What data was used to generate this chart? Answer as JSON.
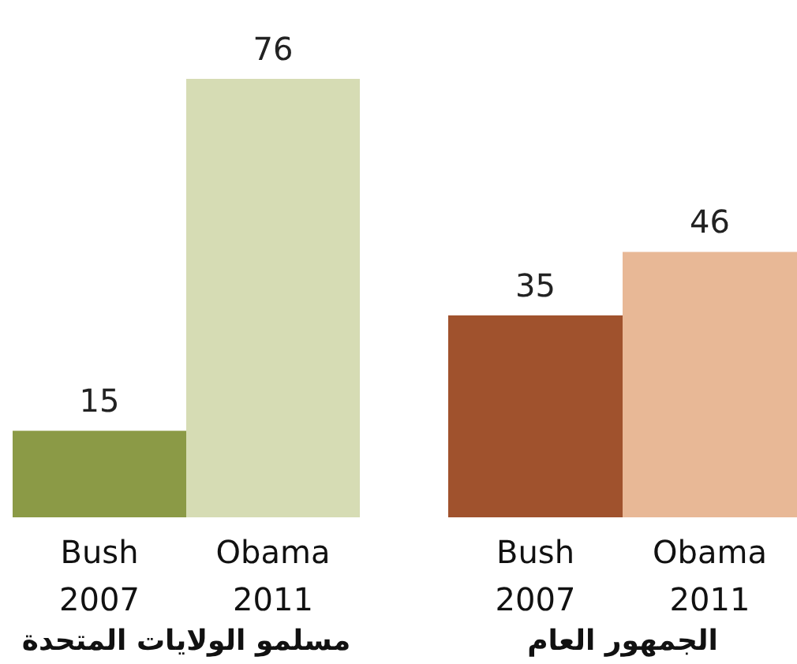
{
  "chart_data": [
    {
      "type": "bar",
      "xlabel": "مسلمو الولايات المتحدة",
      "categories": [
        "Bush\n2007",
        "Obama\n2011"
      ],
      "values": [
        15,
        76
      ],
      "colors": [
        "#8b9a46",
        "#d6dcb4"
      ],
      "data_labels": true
    },
    {
      "type": "bar",
      "xlabel": "الجمهور العام",
      "categories": [
        "Bush\n2007",
        "Obama\n2011"
      ],
      "values": [
        35,
        46
      ],
      "colors": [
        "#a0522d",
        "#e8b896"
      ],
      "data_labels": true
    }
  ]
}
